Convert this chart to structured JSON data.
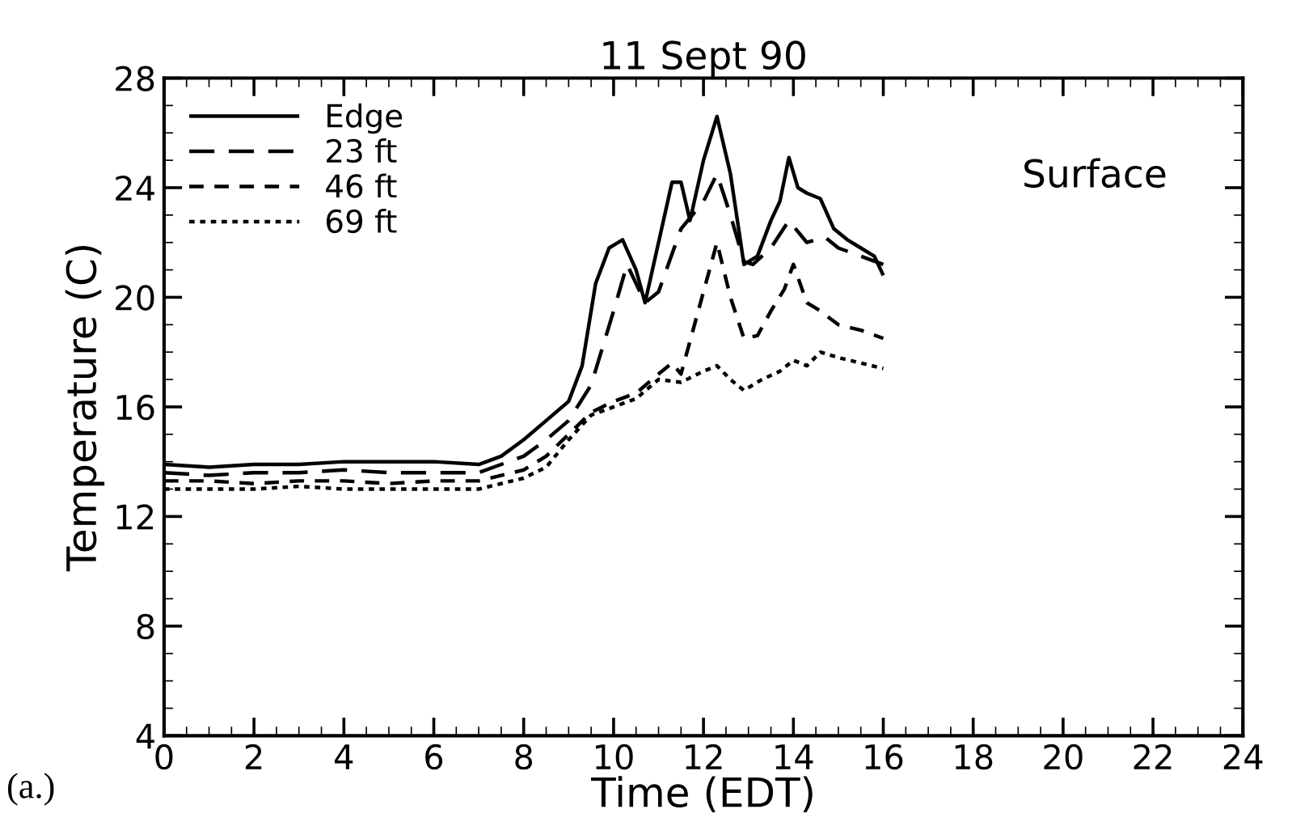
{
  "chart_data": {
    "type": "line",
    "title": "11 Sept 90",
    "xlabel": "Time (EDT)",
    "ylabel": "Temperature (C)",
    "xlim": [
      0,
      24
    ],
    "xticks": [
      0,
      2,
      4,
      6,
      8,
      10,
      12,
      14,
      16,
      18,
      20,
      22,
      24
    ],
    "ylim": [
      4,
      28
    ],
    "yticks": [
      4,
      8,
      12,
      16,
      20,
      24,
      28
    ],
    "grid": false,
    "legend": "top left",
    "marker": "none",
    "annotations": [
      "Surface",
      "(a.)"
    ],
    "series": [
      {
        "name": "Edge",
        "color": "#000000",
        "line_style": "solid",
        "x": [
          0,
          1,
          2,
          3,
          4,
          5,
          6,
          7,
          7.5,
          8,
          8.5,
          9,
          9.3,
          9.6,
          9.9,
          10.2,
          10.5,
          10.7,
          11,
          11.3,
          11.5,
          11.7,
          12,
          12.3,
          12.6,
          12.9,
          13.2,
          13.5,
          13.7,
          13.9,
          14.1,
          14.3,
          14.6,
          14.9,
          15.2,
          15.5,
          15.8,
          16
        ],
        "values": [
          13.9,
          13.8,
          13.9,
          13.9,
          14.0,
          14.0,
          14.0,
          13.9,
          14.2,
          14.8,
          15.5,
          16.2,
          17.5,
          20.5,
          21.8,
          22.1,
          21.0,
          19.8,
          22.0,
          24.2,
          24.2,
          22.8,
          25.0,
          26.6,
          24.5,
          21.2,
          21.5,
          22.8,
          23.5,
          25.1,
          24.0,
          23.8,
          23.6,
          22.5,
          22.1,
          21.8,
          21.5,
          20.8
        ]
      },
      {
        "name": "23 ft",
        "color": "#000000",
        "line_style": "dashed",
        "x": [
          0,
          1,
          2,
          3,
          4,
          5,
          6,
          7,
          8,
          8.5,
          9,
          9.5,
          10,
          10.3,
          10.7,
          11,
          11.5,
          12,
          12.3,
          12.6,
          12.9,
          13.1,
          13.5,
          13.9,
          14.3,
          14.7,
          15,
          15.5,
          16
        ],
        "values": [
          13.6,
          13.5,
          13.6,
          13.6,
          13.7,
          13.6,
          13.6,
          13.6,
          14.2,
          14.8,
          15.5,
          16.8,
          19.5,
          21.2,
          19.8,
          20.2,
          22.5,
          23.5,
          24.5,
          23.0,
          21.3,
          21.2,
          21.8,
          22.8,
          22.0,
          22.2,
          21.8,
          21.5,
          21.2
        ]
      },
      {
        "name": "46 ft",
        "color": "#000000",
        "line_style": "dashed",
        "x": [
          0,
          1,
          2,
          3,
          4,
          5,
          6,
          7,
          8,
          8.5,
          9,
          9.5,
          10,
          10.5,
          11,
          11.3,
          11.5,
          11.8,
          12.3,
          12.6,
          12.9,
          13.2,
          13.5,
          13.8,
          14,
          14.3,
          14.6,
          15,
          15.5,
          16
        ],
        "values": [
          13.3,
          13.3,
          13.2,
          13.3,
          13.3,
          13.2,
          13.3,
          13.3,
          13.7,
          14.2,
          15.0,
          15.8,
          16.2,
          16.5,
          17.2,
          17.6,
          17.2,
          19.0,
          22.0,
          20.0,
          18.5,
          18.6,
          19.5,
          20.3,
          21.2,
          19.8,
          19.5,
          19.0,
          18.8,
          18.5
        ]
      },
      {
        "name": "69 ft",
        "color": "#000000",
        "line_style": "dotted",
        "x": [
          0,
          1,
          2,
          3,
          4,
          5,
          6,
          7,
          8,
          8.5,
          9,
          9.5,
          10,
          10.5,
          11,
          11.5,
          12,
          12.3,
          12.6,
          12.9,
          13.3,
          13.7,
          14,
          14.3,
          14.6,
          15,
          15.5,
          16
        ],
        "values": [
          13.0,
          13.0,
          13.0,
          13.1,
          13.0,
          13.0,
          13.0,
          13.0,
          13.4,
          13.8,
          14.8,
          15.7,
          16.0,
          16.3,
          17.0,
          16.9,
          17.3,
          17.5,
          17.0,
          16.6,
          17.0,
          17.3,
          17.7,
          17.5,
          18.0,
          17.8,
          17.6,
          17.4
        ]
      }
    ]
  }
}
